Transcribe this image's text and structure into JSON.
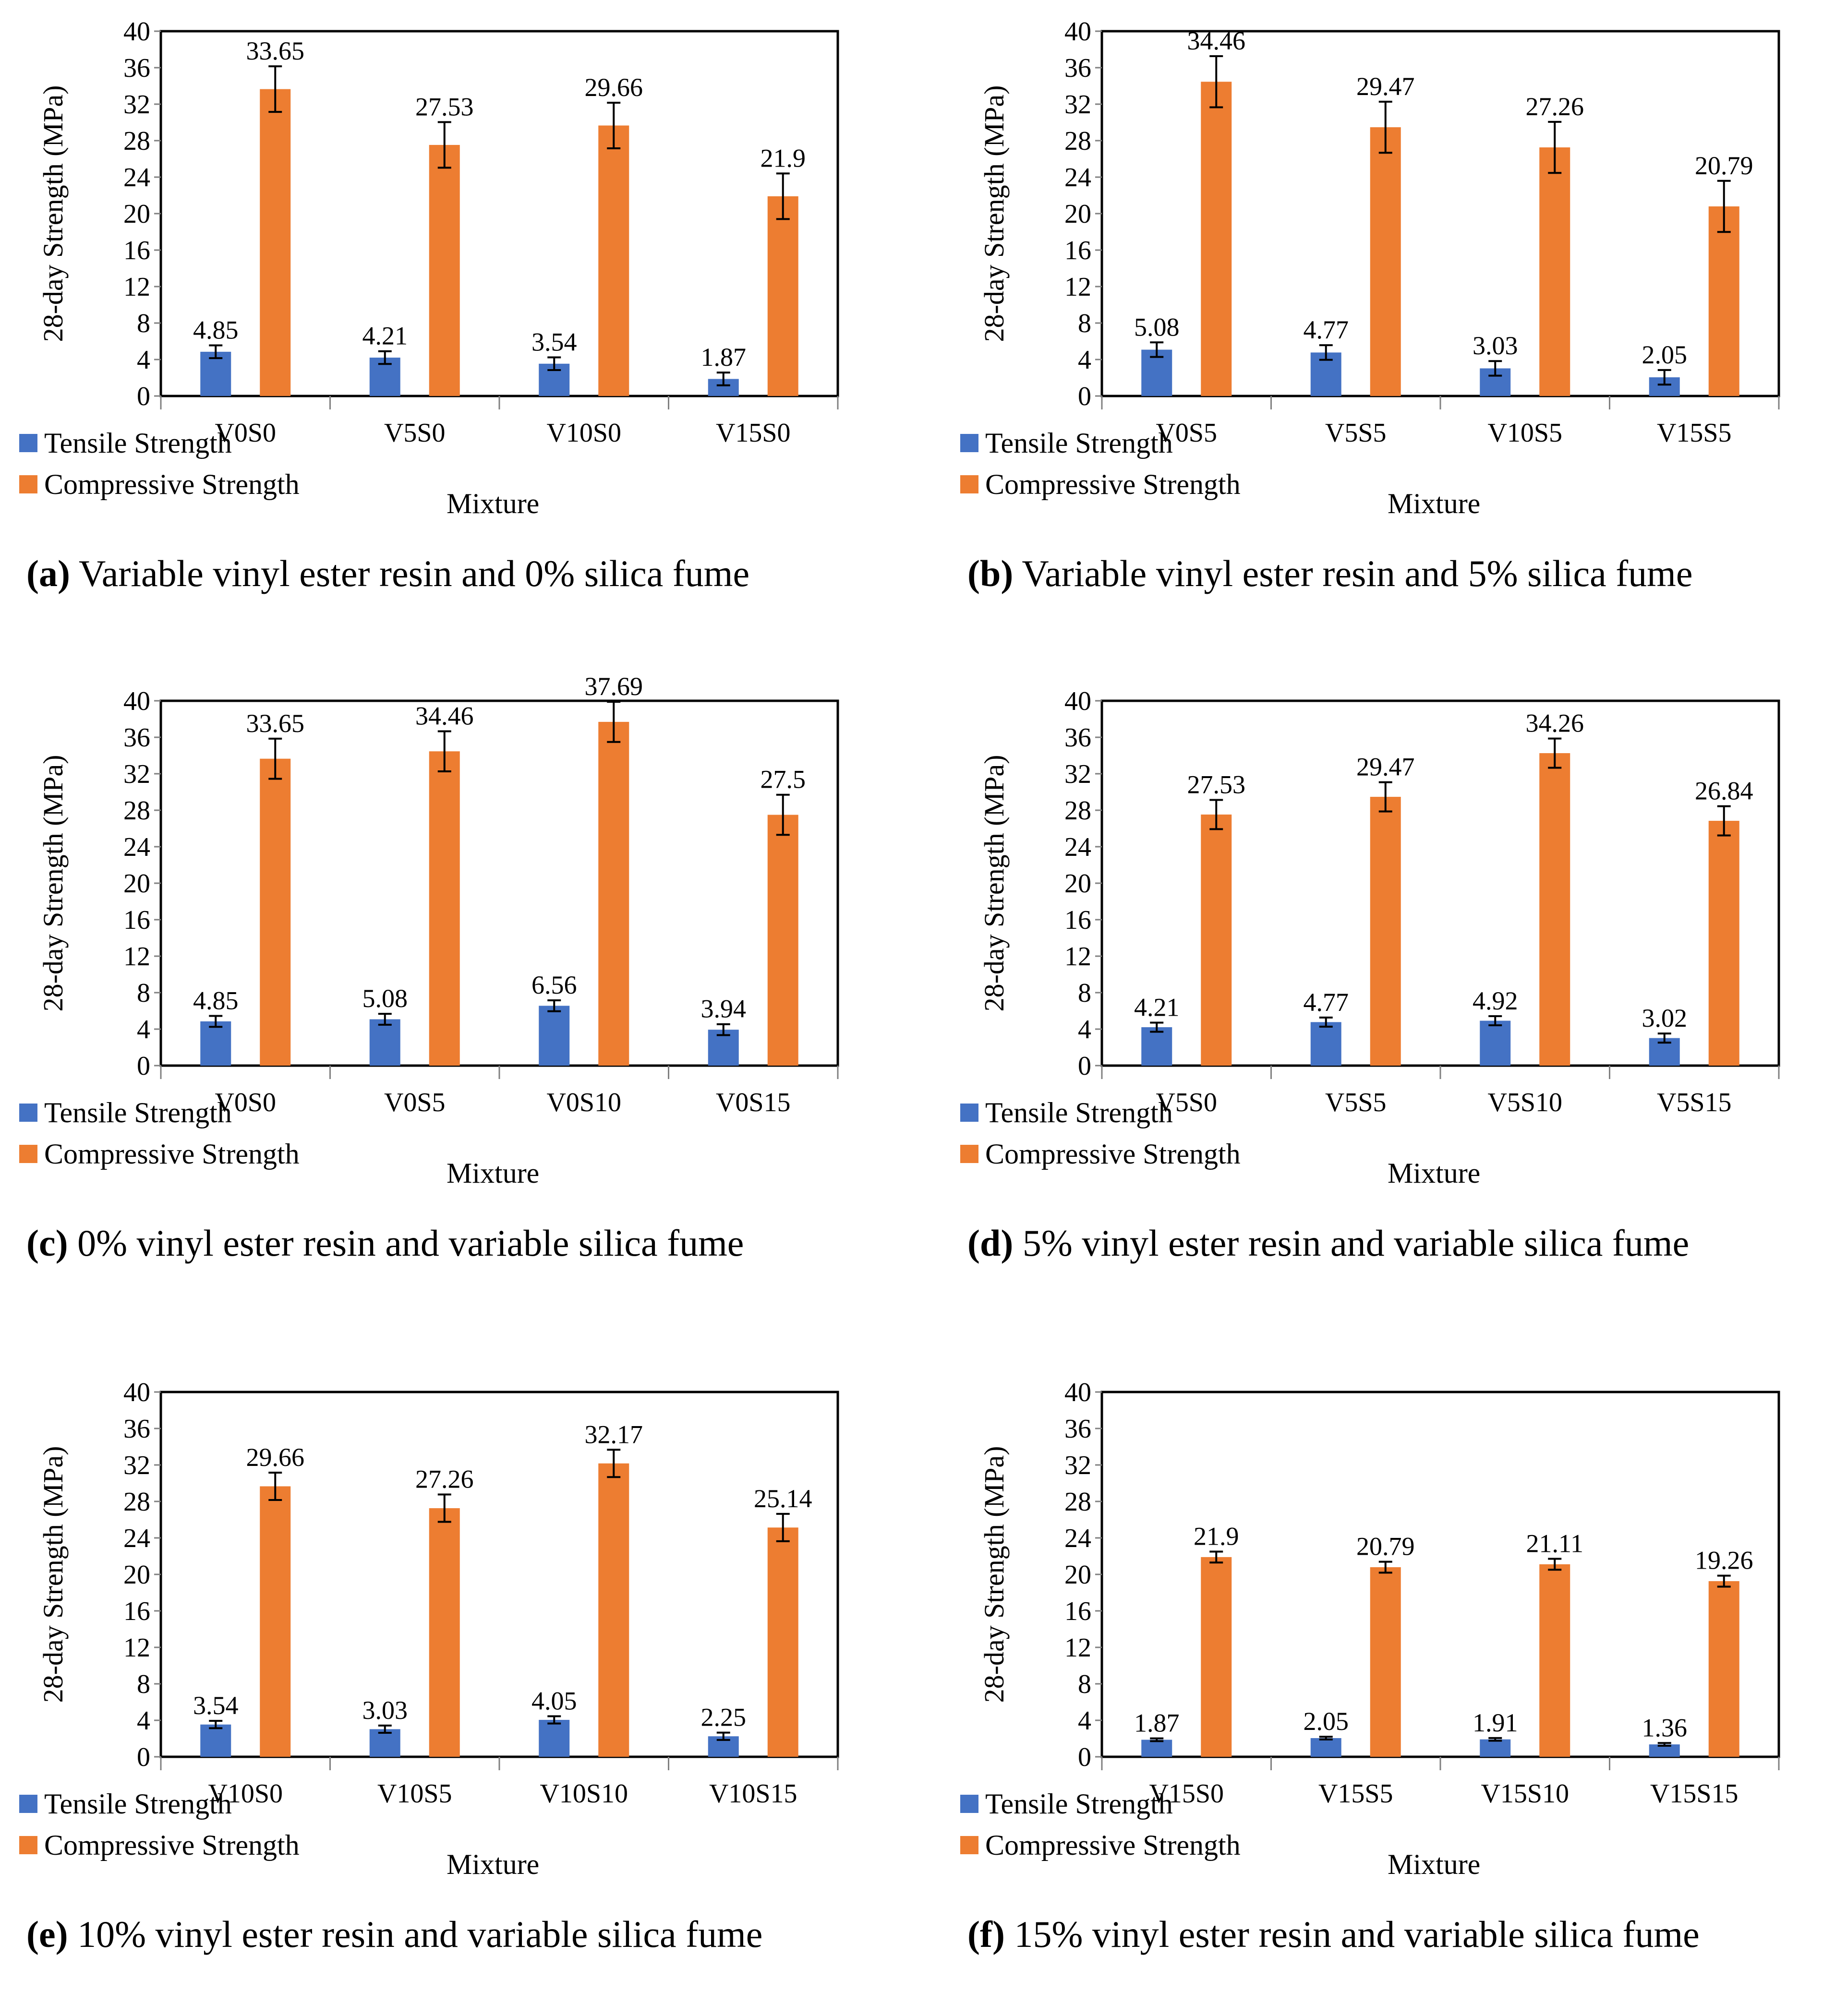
{
  "colors": {
    "tensile": "#4472C4",
    "compressive": "#ED7D31",
    "axis": "#000000",
    "tick_line": "#808080"
  },
  "chart_data": [
    {
      "id": "a",
      "type": "bar",
      "ylabel": "28-day Strength (MPa)",
      "xlabel": "Mixture",
      "ylim": [
        0,
        40
      ],
      "yticks": [
        0,
        4,
        8,
        12,
        16,
        20,
        24,
        28,
        32,
        36,
        40
      ],
      "categories": [
        "V0S0",
        "V5S0",
        "V10S0",
        "V15S0"
      ],
      "series": [
        {
          "name": "Tensile Strength",
          "values": [
            4.85,
            4.21,
            3.54,
            1.87
          ],
          "errors": [
            0.7,
            0.7,
            0.7,
            0.7
          ],
          "labels": [
            "4.85",
            "4.21",
            "3.54",
            "1.87"
          ]
        },
        {
          "name": "Compressive Strength",
          "values": [
            33.65,
            27.53,
            29.66,
            21.9
          ],
          "errors": [
            2.5,
            2.5,
            2.5,
            2.5
          ],
          "labels": [
            "33.65",
            "27.53",
            "29.66",
            "21.9"
          ]
        }
      ],
      "caption_label": "(a)",
      "caption_text": " Variable vinyl ester resin and 0% silica fume"
    },
    {
      "id": "b",
      "type": "bar",
      "ylabel": "28-day Strength (MPa)",
      "xlabel": "Mixture",
      "ylim": [
        0,
        40
      ],
      "yticks": [
        0,
        4,
        8,
        12,
        16,
        20,
        24,
        28,
        32,
        36,
        40
      ],
      "categories": [
        "V0S5",
        "V5S5",
        "V10S5",
        "V15S5"
      ],
      "series": [
        {
          "name": "Tensile Strength",
          "values": [
            5.08,
            4.77,
            3.03,
            2.05
          ],
          "errors": [
            0.8,
            0.8,
            0.8,
            0.8
          ],
          "labels": [
            "5.08",
            "4.77",
            "3.03",
            "2.05"
          ]
        },
        {
          "name": "Compressive Strength",
          "values": [
            34.46,
            29.47,
            27.26,
            20.79
          ],
          "errors": [
            2.8,
            2.8,
            2.8,
            2.8
          ],
          "labels": [
            "34.46",
            "29.47",
            "27.26",
            "20.79"
          ]
        }
      ],
      "caption_label": "(b)",
      "caption_text": " Variable vinyl ester resin and 5% silica fume"
    },
    {
      "id": "c",
      "type": "bar",
      "ylabel": "28-day Strength (MPa)",
      "xlabel": "Mixture",
      "ylim": [
        0,
        40
      ],
      "yticks": [
        0,
        4,
        8,
        12,
        16,
        20,
        24,
        28,
        32,
        36,
        40
      ],
      "categories": [
        "V0S0",
        "V0S5",
        "V0S10",
        "V0S15"
      ],
      "series": [
        {
          "name": "Tensile Strength",
          "values": [
            4.85,
            5.08,
            6.56,
            3.94
          ],
          "errors": [
            0.6,
            0.6,
            0.6,
            0.6
          ],
          "labels": [
            "4.85",
            "5.08",
            "6.56",
            "3.94"
          ]
        },
        {
          "name": "Compressive Strength",
          "values": [
            33.65,
            34.46,
            37.69,
            27.5
          ],
          "errors": [
            2.2,
            2.2,
            2.2,
            2.2
          ],
          "labels": [
            "33.65",
            "34.46",
            "37.69",
            "27.5"
          ]
        }
      ],
      "caption_label": "(c)",
      "caption_text": " 0% vinyl ester resin and variable silica fume"
    },
    {
      "id": "d",
      "type": "bar",
      "ylabel": "28-day Strength (MPa)",
      "xlabel": "Mixture",
      "ylim": [
        0,
        40
      ],
      "yticks": [
        0,
        4,
        8,
        12,
        16,
        20,
        24,
        28,
        32,
        36,
        40
      ],
      "categories": [
        "V5S0",
        "V5S5",
        "V5S10",
        "V5S15"
      ],
      "series": [
        {
          "name": "Tensile Strength",
          "values": [
            4.21,
            4.77,
            4.92,
            3.02
          ],
          "errors": [
            0.5,
            0.5,
            0.5,
            0.5
          ],
          "labels": [
            "4.21",
            "4.77",
            "4.92",
            "3.02"
          ]
        },
        {
          "name": "Compressive Strength",
          "values": [
            27.53,
            29.47,
            34.26,
            26.84
          ],
          "errors": [
            1.6,
            1.6,
            1.6,
            1.6
          ],
          "labels": [
            "27.53",
            "29.47",
            "34.26",
            "26.84"
          ]
        }
      ],
      "caption_label": "(d)",
      "caption_text": " 5% vinyl ester resin and variable silica fume"
    },
    {
      "id": "e",
      "type": "bar",
      "ylabel": "28-day Strength (MPa)",
      "xlabel": "Mixture",
      "ylim": [
        0,
        40
      ],
      "yticks": [
        0,
        4,
        8,
        12,
        16,
        20,
        24,
        28,
        32,
        36,
        40
      ],
      "categories": [
        "V10S0",
        "V10S5",
        "V10S10",
        "V10S15"
      ],
      "series": [
        {
          "name": "Tensile Strength",
          "values": [
            3.54,
            3.03,
            4.05,
            2.25
          ],
          "errors": [
            0.4,
            0.4,
            0.4,
            0.4
          ],
          "labels": [
            "3.54",
            "3.03",
            "4.05",
            "2.25"
          ]
        },
        {
          "name": "Compressive Strength",
          "values": [
            29.66,
            27.26,
            32.17,
            25.14
          ],
          "errors": [
            1.5,
            1.5,
            1.5,
            1.5
          ],
          "labels": [
            "29.66",
            "27.26",
            "32.17",
            "25.14"
          ]
        }
      ],
      "caption_label": "(e)",
      "caption_text": " 10% vinyl ester resin and variable silica fume"
    },
    {
      "id": "f",
      "type": "bar",
      "ylabel": "28-day Strength (MPa)",
      "xlabel": "Mixture",
      "ylim": [
        0,
        40
      ],
      "yticks": [
        0,
        4,
        8,
        12,
        16,
        20,
        24,
        28,
        32,
        36,
        40
      ],
      "categories": [
        "V15S0",
        "V15S5",
        "V15S10",
        "V15S15"
      ],
      "series": [
        {
          "name": "Tensile Strength",
          "values": [
            1.87,
            2.05,
            1.91,
            1.36
          ],
          "errors": [
            0.15,
            0.15,
            0.15,
            0.15
          ],
          "labels": [
            "1.87",
            "2.05",
            "1.91",
            "1.36"
          ]
        },
        {
          "name": "Compressive Strength",
          "values": [
            21.9,
            20.79,
            21.11,
            19.26
          ],
          "errors": [
            0.6,
            0.6,
            0.6,
            0.6
          ],
          "labels": [
            "21.9",
            "20.79",
            "21.11",
            "19.26"
          ]
        }
      ],
      "caption_label": "(f)",
      "caption_text": " 15% vinyl ester resin and variable silica fume"
    }
  ]
}
